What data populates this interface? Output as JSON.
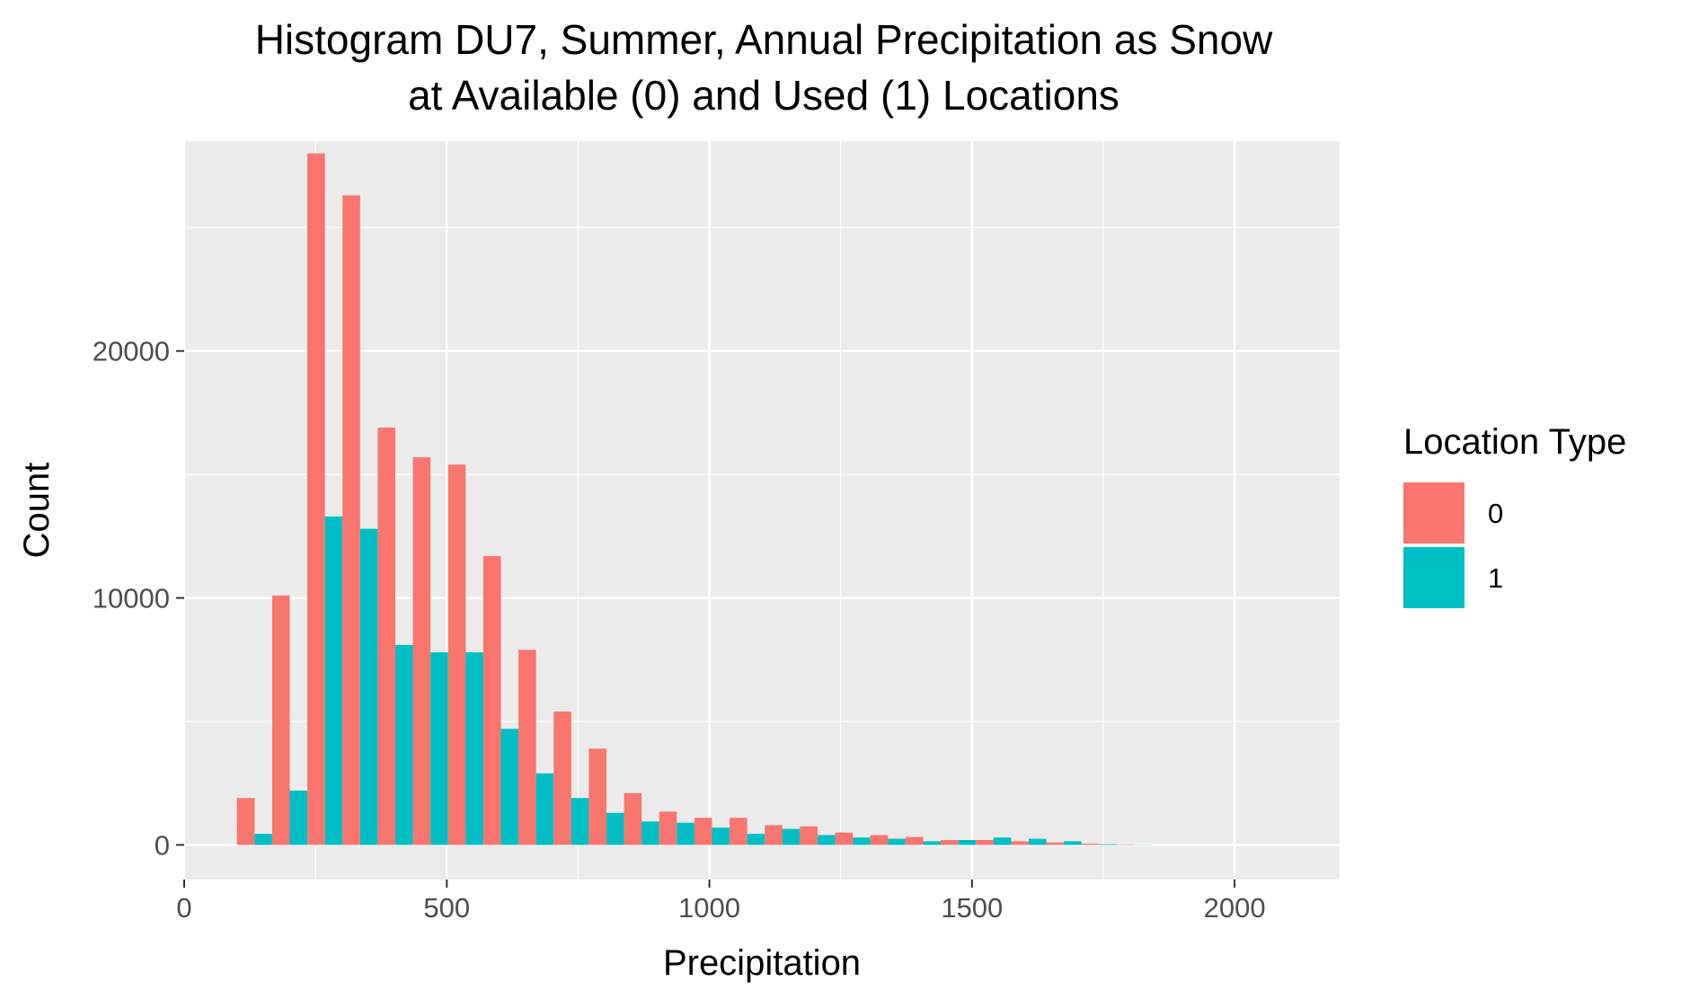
{
  "chart_data": {
    "type": "bar",
    "title": [
      "Histogram DU7, Summer, Annual Precipitation as Snow",
      "at Available (0) and Used (1) Locations"
    ],
    "xlabel": "Precipitation",
    "ylabel": "Count",
    "xlim": [
      0,
      2200
    ],
    "ylim": [
      -1400,
      28500
    ],
    "xticks": [
      "0",
      "500",
      "1000",
      "1500",
      "2000"
    ],
    "xtick_values": [
      0,
      500,
      1000,
      1500,
      2000
    ],
    "yticks": [
      "0",
      "10000",
      "20000"
    ],
    "ytick_values": [
      0,
      10000,
      20000
    ],
    "grid": true,
    "legend": {
      "title": "Location Type",
      "position": "right"
    },
    "bin_width": 67,
    "bin_centers": [
      134,
      201,
      268,
      335,
      402,
      469,
      536,
      603,
      670,
      737,
      804,
      871,
      938,
      1005,
      1072,
      1139,
      1206,
      1273,
      1340,
      1407,
      1474,
      1541,
      1608,
      1675,
      1742,
      1809
    ],
    "series": [
      {
        "name": "0",
        "color": "#F8766D",
        "values": [
          1900,
          10100,
          28000,
          26300,
          16900,
          15700,
          15400,
          11700,
          7900,
          5400,
          3900,
          2100,
          1350,
          1100,
          1100,
          800,
          750,
          500,
          400,
          320,
          200,
          200,
          150,
          100,
          50,
          20
        ]
      },
      {
        "name": "1",
        "color": "#00BFC4",
        "values": [
          450,
          2200,
          13300,
          12800,
          8100,
          7800,
          7800,
          4700,
          2900,
          1900,
          1300,
          950,
          900,
          700,
          450,
          650,
          400,
          300,
          250,
          150,
          200,
          300,
          250,
          150,
          30,
          10
        ]
      }
    ]
  }
}
